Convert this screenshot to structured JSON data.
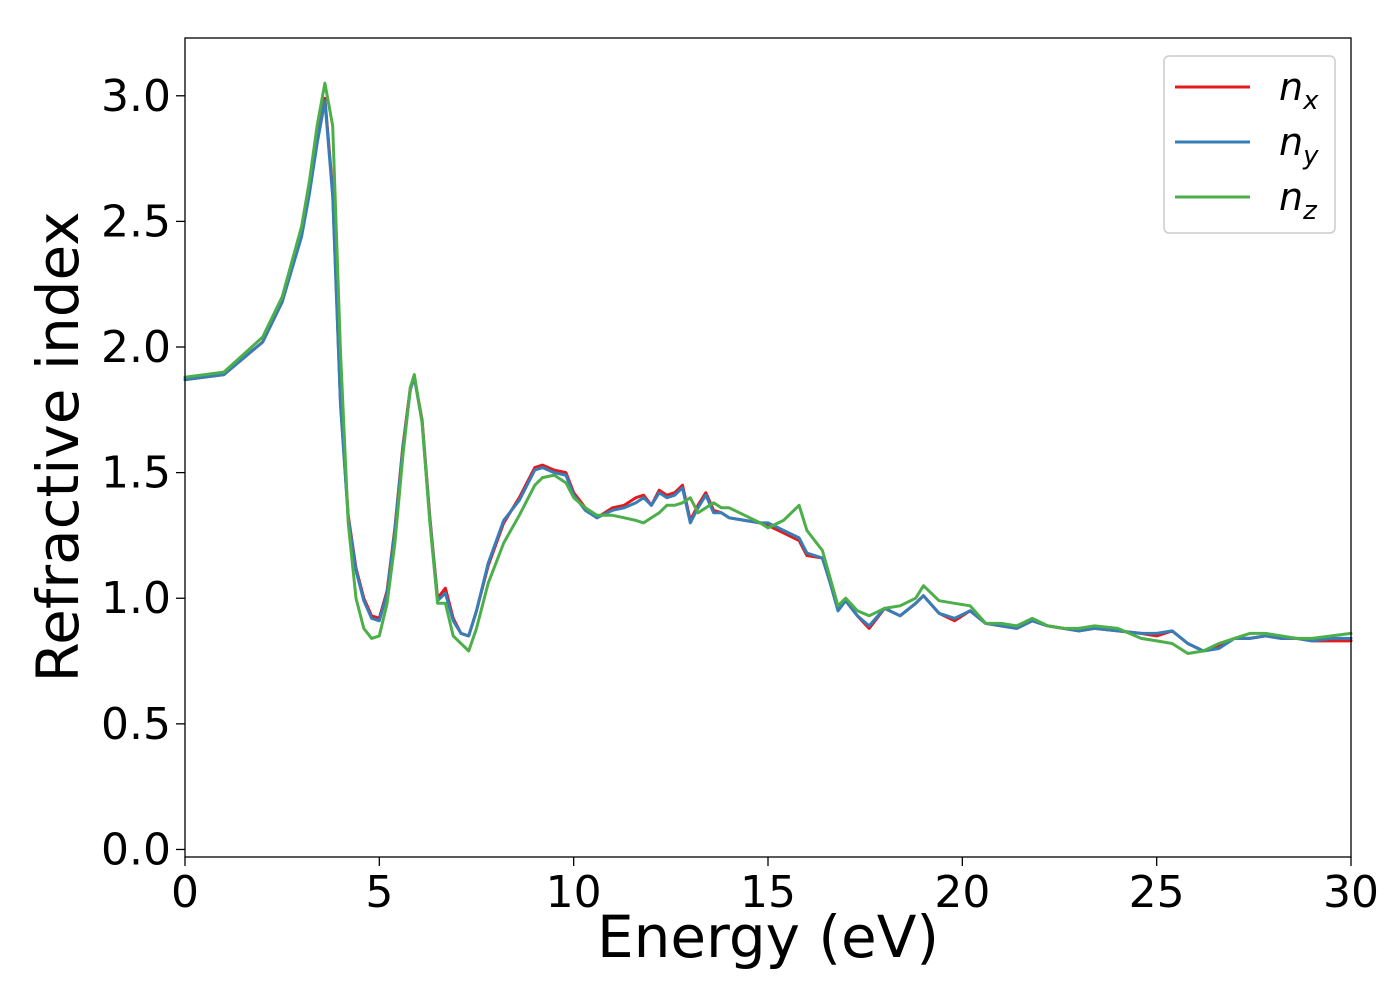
{
  "chart_data": {
    "type": "line",
    "title": "",
    "xlabel": "Energy (eV)",
    "ylabel": "Refractive index",
    "xlim": [
      0,
      30
    ],
    "ylim": [
      -0.03,
      3.23
    ],
    "xticks": [
      0,
      5,
      10,
      15,
      20,
      25,
      30
    ],
    "xtick_labels": [
      "0",
      "5",
      "10",
      "15",
      "20",
      "25",
      "30"
    ],
    "yticks": [
      0.0,
      0.5,
      1.0,
      1.5,
      2.0,
      2.5,
      3.0
    ],
    "ytick_labels": [
      "0.0",
      "0.5",
      "1.0",
      "1.5",
      "2.0",
      "2.5",
      "3.0"
    ],
    "grid": false,
    "legend_position": "top-right",
    "series": [
      {
        "name": "n",
        "subscript": "x",
        "color": "#e41a1c",
        "x": [
          0,
          1,
          2,
          2.5,
          3,
          3.2,
          3.4,
          3.6,
          3.8,
          4.0,
          4.2,
          4.4,
          4.6,
          4.8,
          5.0,
          5.2,
          5.4,
          5.6,
          5.8,
          5.9,
          6.1,
          6.3,
          6.5,
          6.7,
          6.9,
          7.1,
          7.3,
          7.5,
          7.8,
          8.2,
          8.6,
          9.0,
          9.2,
          9.5,
          9.8,
          10.0,
          10.3,
          10.6,
          11.0,
          11.3,
          11.6,
          11.8,
          12.0,
          12.2,
          12.4,
          12.6,
          12.8,
          13.0,
          13.2,
          13.4,
          13.6,
          13.8,
          14.0,
          14.4,
          14.8,
          15.0,
          15.4,
          15.8,
          16.0,
          16.4,
          16.6,
          16.8,
          17.0,
          17.3,
          17.6,
          18.0,
          18.4,
          18.8,
          19.0,
          19.4,
          19.8,
          20.2,
          20.6,
          21.0,
          21.4,
          21.8,
          22.2,
          22.6,
          23.0,
          23.4,
          24.0,
          24.6,
          25.0,
          25.4,
          25.8,
          26.2,
          26.6,
          27.0,
          27.4,
          27.8,
          28.2,
          28.6,
          29.0,
          29.5,
          30.0
        ],
        "y": [
          1.87,
          1.89,
          2.02,
          2.18,
          2.45,
          2.62,
          2.82,
          2.99,
          2.62,
          1.78,
          1.33,
          1.12,
          1.0,
          0.93,
          0.92,
          1.03,
          1.28,
          1.6,
          1.84,
          1.88,
          1.71,
          1.32,
          1.0,
          1.04,
          0.92,
          0.86,
          0.85,
          0.95,
          1.13,
          1.3,
          1.4,
          1.52,
          1.53,
          1.51,
          1.5,
          1.42,
          1.36,
          1.32,
          1.36,
          1.37,
          1.4,
          1.41,
          1.37,
          1.43,
          1.41,
          1.42,
          1.45,
          1.31,
          1.37,
          1.42,
          1.35,
          1.34,
          1.32,
          1.31,
          1.3,
          1.29,
          1.26,
          1.23,
          1.17,
          1.16,
          1.07,
          0.96,
          0.99,
          0.93,
          0.88,
          0.96,
          0.93,
          0.98,
          1.01,
          0.94,
          0.91,
          0.95,
          0.9,
          0.89,
          0.88,
          0.91,
          0.89,
          0.88,
          0.87,
          0.88,
          0.87,
          0.86,
          0.85,
          0.87,
          0.82,
          0.79,
          0.81,
          0.84,
          0.84,
          0.85,
          0.84,
          0.84,
          0.83,
          0.83,
          0.83
        ]
      },
      {
        "name": "n",
        "subscript": "y",
        "color": "#377eb8",
        "x": [
          0,
          1,
          2,
          2.5,
          3,
          3.2,
          3.4,
          3.6,
          3.8,
          4.0,
          4.2,
          4.4,
          4.6,
          4.8,
          5.0,
          5.2,
          5.4,
          5.6,
          5.8,
          5.9,
          6.1,
          6.3,
          6.5,
          6.7,
          6.9,
          7.1,
          7.3,
          7.5,
          7.8,
          8.2,
          8.6,
          9.0,
          9.2,
          9.5,
          9.8,
          10.0,
          10.3,
          10.6,
          11.0,
          11.3,
          11.6,
          11.8,
          12.0,
          12.2,
          12.4,
          12.6,
          12.8,
          13.0,
          13.2,
          13.4,
          13.6,
          13.8,
          14.0,
          14.4,
          14.8,
          15.0,
          15.4,
          15.8,
          16.0,
          16.4,
          16.6,
          16.8,
          17.0,
          17.3,
          17.6,
          18.0,
          18.4,
          18.8,
          19.0,
          19.4,
          19.8,
          20.2,
          20.6,
          21.0,
          21.4,
          21.8,
          22.2,
          22.6,
          23.0,
          23.4,
          24.0,
          24.6,
          25.0,
          25.4,
          25.8,
          26.2,
          26.6,
          27.0,
          27.4,
          27.8,
          28.2,
          28.6,
          29.0,
          29.5,
          30.0
        ],
        "y": [
          1.87,
          1.89,
          2.02,
          2.18,
          2.44,
          2.61,
          2.81,
          2.98,
          2.6,
          1.77,
          1.32,
          1.11,
          0.99,
          0.92,
          0.91,
          1.02,
          1.27,
          1.59,
          1.83,
          1.88,
          1.7,
          1.31,
          0.99,
          1.02,
          0.91,
          0.86,
          0.85,
          0.95,
          1.14,
          1.31,
          1.39,
          1.51,
          1.52,
          1.5,
          1.49,
          1.41,
          1.35,
          1.32,
          1.35,
          1.36,
          1.38,
          1.4,
          1.37,
          1.42,
          1.4,
          1.41,
          1.44,
          1.3,
          1.36,
          1.41,
          1.34,
          1.34,
          1.32,
          1.31,
          1.3,
          1.3,
          1.27,
          1.24,
          1.18,
          1.16,
          1.06,
          0.95,
          0.99,
          0.93,
          0.89,
          0.96,
          0.93,
          0.98,
          1.01,
          0.94,
          0.92,
          0.95,
          0.9,
          0.89,
          0.88,
          0.91,
          0.89,
          0.88,
          0.87,
          0.88,
          0.87,
          0.86,
          0.86,
          0.87,
          0.82,
          0.79,
          0.8,
          0.84,
          0.84,
          0.85,
          0.84,
          0.84,
          0.83,
          0.84,
          0.84
        ]
      },
      {
        "name": "n",
        "subscript": "z",
        "color": "#4daf4a",
        "x": [
          0,
          1,
          2,
          2.5,
          3,
          3.2,
          3.4,
          3.6,
          3.8,
          4.0,
          4.2,
          4.4,
          4.6,
          4.8,
          5.0,
          5.2,
          5.4,
          5.6,
          5.8,
          5.9,
          6.1,
          6.3,
          6.5,
          6.7,
          6.9,
          7.1,
          7.3,
          7.5,
          7.8,
          8.2,
          8.6,
          9.0,
          9.2,
          9.5,
          9.8,
          10.0,
          10.3,
          10.6,
          11.0,
          11.3,
          11.6,
          11.8,
          12.0,
          12.2,
          12.4,
          12.6,
          12.8,
          13.0,
          13.2,
          13.4,
          13.6,
          13.8,
          14.0,
          14.4,
          14.8,
          15.0,
          15.4,
          15.8,
          16.0,
          16.4,
          16.6,
          16.8,
          17.0,
          17.3,
          17.6,
          18.0,
          18.4,
          18.8,
          19.0,
          19.4,
          19.8,
          20.2,
          20.6,
          21.0,
          21.4,
          21.8,
          22.2,
          22.6,
          23.0,
          23.4,
          24.0,
          24.6,
          25.0,
          25.4,
          25.8,
          26.2,
          26.6,
          27.0,
          27.4,
          27.8,
          28.2,
          28.6,
          29.0,
          29.5,
          30.0
        ],
        "y": [
          1.88,
          1.9,
          2.04,
          2.2,
          2.48,
          2.66,
          2.88,
          3.05,
          2.88,
          1.98,
          1.3,
          1.0,
          0.88,
          0.84,
          0.85,
          0.98,
          1.22,
          1.56,
          1.84,
          1.89,
          1.7,
          1.3,
          0.98,
          0.98,
          0.85,
          0.82,
          0.79,
          0.88,
          1.06,
          1.22,
          1.33,
          1.45,
          1.48,
          1.49,
          1.46,
          1.4,
          1.36,
          1.33,
          1.33,
          1.32,
          1.31,
          1.3,
          1.32,
          1.34,
          1.37,
          1.37,
          1.38,
          1.4,
          1.34,
          1.36,
          1.38,
          1.36,
          1.36,
          1.33,
          1.3,
          1.28,
          1.31,
          1.37,
          1.27,
          1.19,
          1.08,
          0.97,
          1.0,
          0.95,
          0.93,
          0.96,
          0.97,
          1.0,
          1.05,
          0.99,
          0.98,
          0.97,
          0.9,
          0.9,
          0.89,
          0.92,
          0.89,
          0.88,
          0.88,
          0.89,
          0.88,
          0.84,
          0.83,
          0.82,
          0.78,
          0.79,
          0.82,
          0.84,
          0.86,
          0.86,
          0.85,
          0.84,
          0.84,
          0.85,
          0.86
        ]
      }
    ]
  }
}
